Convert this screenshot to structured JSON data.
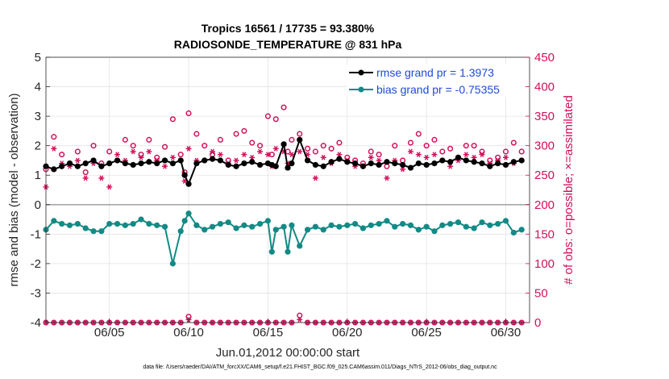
{
  "chart_data": {
    "type": "line",
    "title": "Tropics 16561 / 17735 = 93.380%",
    "subtitle": "RADIOSONDE_TEMPERATURE @ 831 hPa",
    "xlabel": "Jun.01,2012 00:00:00 start",
    "ylabel": "rmse and bias (model - observation)",
    "y2label": "# of obs: o=possible; ×=assimilated",
    "xlim": [
      1.0,
      31.5
    ],
    "ylim": [
      -4,
      5
    ],
    "y2lim": [
      0,
      450
    ],
    "x_ticks": [
      5,
      10,
      15,
      20,
      25,
      30
    ],
    "x_tick_labels": [
      "06/05",
      "06/10",
      "06/15",
      "06/20",
      "06/25",
      "06/30"
    ],
    "y_ticks": [
      -4,
      -3,
      -2,
      -1,
      0,
      1,
      2,
      3,
      4,
      5
    ],
    "y2_ticks": [
      0,
      50,
      100,
      150,
      200,
      250,
      300,
      350,
      400,
      450
    ],
    "grid": true,
    "legend_position": "top-right",
    "colors": {
      "rmse": "#000000",
      "bias": "#138a85",
      "obs": "#d0105a",
      "legend_text": "#1f4ad8"
    },
    "series": [
      {
        "name": "rmse grand pr = 1.3973",
        "axis": "left",
        "x": [
          1.0,
          1.5,
          2.0,
          2.5,
          3.0,
          3.5,
          4.0,
          4.5,
          5.0,
          5.5,
          6.0,
          6.5,
          7.0,
          7.5,
          8.0,
          8.5,
          9.0,
          9.5,
          9.75,
          10.0,
          10.5,
          11.0,
          11.5,
          12.0,
          12.5,
          13.0,
          13.5,
          14.0,
          14.5,
          15.0,
          15.25,
          15.5,
          16.0,
          16.25,
          16.5,
          17.0,
          17.5,
          18.0,
          18.5,
          19.0,
          19.5,
          20.0,
          20.5,
          21.0,
          21.5,
          22.0,
          22.5,
          23.0,
          23.5,
          24.0,
          24.5,
          25.0,
          25.5,
          26.0,
          26.5,
          27.0,
          27.5,
          28.0,
          28.5,
          29.0,
          29.5,
          30.0,
          30.5,
          31.0
        ],
        "values": [
          1.3,
          1.2,
          1.3,
          1.4,
          1.3,
          1.4,
          1.5,
          1.3,
          1.4,
          1.5,
          1.4,
          1.35,
          1.4,
          1.45,
          1.4,
          1.5,
          1.4,
          1.5,
          1.0,
          0.7,
          1.4,
          1.5,
          1.55,
          1.5,
          1.35,
          1.3,
          1.4,
          1.45,
          1.35,
          1.4,
          1.35,
          1.3,
          2.05,
          1.25,
          1.4,
          2.2,
          1.5,
          1.35,
          1.3,
          1.45,
          1.55,
          1.45,
          1.4,
          1.3,
          1.4,
          1.35,
          1.45,
          1.4,
          1.35,
          1.25,
          1.4,
          1.35,
          1.4,
          1.5,
          1.45,
          1.6,
          1.5,
          1.45,
          1.4,
          1.3,
          1.4,
          1.35,
          1.45,
          1.5
        ]
      },
      {
        "name": "bias grand pr = -0.75355",
        "axis": "left",
        "x": [
          1.0,
          1.5,
          2.0,
          2.5,
          3.0,
          3.5,
          4.0,
          4.5,
          5.0,
          5.5,
          6.0,
          6.5,
          7.0,
          7.5,
          8.0,
          8.5,
          9.0,
          9.5,
          9.75,
          10.0,
          10.5,
          11.0,
          11.5,
          12.0,
          12.5,
          13.0,
          13.5,
          14.0,
          14.5,
          15.0,
          15.25,
          15.5,
          16.0,
          16.25,
          16.5,
          17.0,
          17.5,
          18.0,
          18.5,
          19.0,
          19.5,
          20.0,
          20.5,
          21.0,
          21.5,
          22.0,
          22.5,
          23.0,
          23.5,
          24.0,
          24.5,
          25.0,
          25.5,
          26.0,
          26.5,
          27.0,
          27.5,
          28.0,
          28.5,
          29.0,
          29.5,
          30.0,
          30.5,
          31.0
        ],
        "values": [
          -0.85,
          -0.55,
          -0.65,
          -0.7,
          -0.65,
          -0.8,
          -0.9,
          -0.9,
          -0.65,
          -0.65,
          -0.7,
          -0.65,
          -0.5,
          -0.65,
          -0.7,
          -0.75,
          -2.0,
          -0.9,
          -0.55,
          -0.3,
          -0.7,
          -0.85,
          -0.75,
          -0.65,
          -0.6,
          -0.8,
          -0.7,
          -0.75,
          -0.65,
          -0.55,
          -1.6,
          -0.85,
          -0.75,
          -1.6,
          -0.7,
          -1.4,
          -0.85,
          -0.75,
          -0.85,
          -0.7,
          -0.75,
          -0.7,
          -0.65,
          -0.8,
          -0.7,
          -0.65,
          -0.55,
          -0.75,
          -0.65,
          -0.7,
          -0.85,
          -0.75,
          -0.9,
          -0.7,
          -0.65,
          -0.6,
          -0.75,
          -0.8,
          -0.6,
          -0.7,
          -0.65,
          -0.55,
          -0.95,
          -0.85
        ]
      },
      {
        "name": "obs possible",
        "axis": "right",
        "marker": "circle",
        "x": [
          1.0,
          1.5,
          2.0,
          2.5,
          3.0,
          3.5,
          4.0,
          4.5,
          5.0,
          5.5,
          6.0,
          6.5,
          7.0,
          7.5,
          8.0,
          8.5,
          9.0,
          9.5,
          9.75,
          10.0,
          10.5,
          11.0,
          11.5,
          12.0,
          12.5,
          13.0,
          13.5,
          14.0,
          14.5,
          15.0,
          15.25,
          15.5,
          16.0,
          16.25,
          16.5,
          17.0,
          17.5,
          18.0,
          18.5,
          19.0,
          19.5,
          20.0,
          20.5,
          21.0,
          21.5,
          22.0,
          22.5,
          23.0,
          23.5,
          24.0,
          24.5,
          25.0,
          25.5,
          26.0,
          26.5,
          27.0,
          27.5,
          28.0,
          28.5,
          29.0,
          29.5,
          30.0,
          30.5,
          31.0
        ],
        "values": [
          260,
          315,
          285,
          270,
          290,
          255,
          300,
          270,
          290,
          275,
          310,
          300,
          285,
          310,
          280,
          298,
          345,
          285,
          255,
          355,
          320,
          300,
          285,
          310,
          275,
          320,
          325,
          305,
          300,
          350,
          285,
          345,
          365,
          290,
          310,
          320,
          295,
          290,
          300,
          295,
          305,
          280,
          275,
          270,
          290,
          285,
          265,
          300,
          275,
          305,
          320,
          300,
          310,
          290,
          295,
          280,
          300,
          300,
          290,
          275,
          280,
          290,
          305,
          290
        ]
      },
      {
        "name": "obs assimilated",
        "axis": "right",
        "marker": "asterisk",
        "x": [
          1.0,
          1.5,
          2.0,
          2.5,
          3.0,
          3.5,
          4.0,
          4.5,
          5.0,
          5.5,
          6.0,
          6.5,
          7.0,
          7.5,
          8.0,
          8.5,
          9.0,
          9.5,
          9.75,
          10.0,
          10.5,
          11.0,
          11.5,
          12.0,
          12.5,
          13.0,
          13.5,
          14.0,
          14.5,
          15.0,
          15.25,
          15.5,
          16.0,
          16.25,
          16.5,
          17.0,
          17.5,
          18.0,
          18.5,
          19.0,
          19.5,
          20.0,
          20.5,
          21.0,
          21.5,
          22.0,
          22.5,
          23.0,
          23.5,
          24.0,
          24.5,
          25.0,
          25.5,
          26.0,
          26.5,
          27.0,
          27.5,
          28.0,
          28.5,
          29.0,
          29.5,
          30.0,
          30.5,
          31.0
        ],
        "values": [
          230,
          295,
          270,
          265,
          275,
          245,
          270,
          245,
          230,
          285,
          275,
          290,
          280,
          290,
          275,
          265,
          280,
          275,
          240,
          295,
          275,
          275,
          290,
          285,
          270,
          275,
          285,
          280,
          290,
          285,
          265,
          295,
          290,
          270,
          285,
          290,
          285,
          245,
          280,
          270,
          285,
          275,
          265,
          265,
          280,
          275,
          245,
          275,
          260,
          290,
          285,
          280,
          285,
          275,
          265,
          275,
          285,
          280,
          285,
          270,
          275,
          280,
          270,
          275
        ]
      },
      {
        "name": "obs zero-line possible",
        "axis": "right",
        "marker": "circle",
        "x": [
          1.0,
          1.5,
          2.0,
          2.5,
          3.0,
          3.5,
          4.0,
          4.5,
          5.0,
          5.5,
          6.0,
          6.5,
          7.0,
          7.5,
          8.0,
          8.5,
          9.0,
          9.5,
          10.0,
          10.5,
          11.0,
          11.5,
          12.0,
          12.5,
          13.0,
          13.5,
          14.0,
          14.5,
          15.0,
          15.5,
          16.0,
          16.5,
          17.0,
          17.5,
          18.0,
          18.5,
          19.0,
          19.5,
          20.0,
          20.5,
          21.0,
          21.5,
          22.0,
          22.5,
          23.0,
          23.5,
          24.0,
          24.5,
          25.0,
          25.5,
          26.0,
          26.5,
          27.0,
          27.5,
          28.0,
          28.5,
          29.0,
          29.5,
          30.0,
          30.5,
          31.0
        ],
        "values": [
          0,
          0,
          0,
          0,
          0,
          0,
          0,
          0,
          0,
          0,
          0,
          0,
          0,
          0,
          0,
          0,
          0,
          0,
          10,
          0,
          0,
          0,
          0,
          0,
          0,
          0,
          0,
          0,
          0,
          0,
          0,
          0,
          12,
          0,
          0,
          0,
          0,
          0,
          0,
          0,
          0,
          0,
          0,
          0,
          0,
          0,
          0,
          0,
          0,
          0,
          0,
          0,
          0,
          0,
          0,
          0,
          0,
          0,
          0,
          0,
          0
        ]
      },
      {
        "name": "obs zero-line assimilated",
        "axis": "right",
        "marker": "asterisk",
        "x": [
          1.0,
          1.5,
          2.0,
          2.5,
          3.0,
          3.5,
          4.0,
          4.5,
          5.0,
          5.5,
          6.0,
          6.5,
          7.0,
          7.5,
          8.0,
          8.5,
          9.0,
          9.5,
          10.0,
          10.5,
          11.0,
          11.5,
          12.0,
          12.5,
          13.0,
          13.5,
          14.0,
          14.5,
          15.0,
          15.5,
          16.0,
          16.5,
          17.0,
          17.5,
          18.0,
          18.5,
          19.0,
          19.5,
          20.0,
          20.5,
          21.0,
          21.5,
          22.0,
          22.5,
          23.0,
          23.5,
          24.0,
          24.5,
          25.0,
          25.5,
          26.0,
          26.5,
          27.0,
          27.5,
          28.0,
          28.5,
          29.0,
          29.5,
          30.0,
          30.5,
          31.0
        ],
        "values": [
          0,
          0,
          0,
          0,
          0,
          0,
          0,
          0,
          0,
          0,
          0,
          0,
          0,
          0,
          0,
          0,
          0,
          0,
          5,
          0,
          0,
          0,
          0,
          0,
          0,
          0,
          0,
          0,
          0,
          0,
          0,
          0,
          5,
          0,
          0,
          0,
          0,
          0,
          0,
          0,
          0,
          0,
          0,
          0,
          0,
          0,
          0,
          0,
          0,
          0,
          0,
          0,
          0,
          0,
          0,
          0,
          0,
          0,
          0,
          0,
          0
        ]
      }
    ],
    "footnote": "data file: /Users/raeder/DAI/ATM_forcXX/CAM6_setup/f.e21.FHIST_BGC.f09_025.CAM6assim.011/Diags_NTrS_2012-06/obs_diag_output.nc"
  }
}
